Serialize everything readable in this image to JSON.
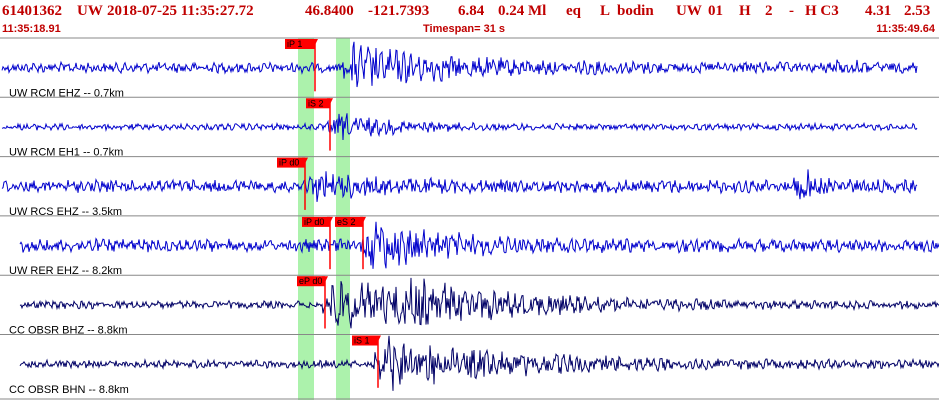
{
  "header": {
    "event_id": "61401362",
    "network": "UW",
    "datetime": "2018-07-25 11:35:27.72",
    "lat": "46.8400",
    "lon": "-121.7393",
    "depth": "6.84",
    "magnitude": "0.24 Ml",
    "event_type": "eq",
    "status": "L",
    "author": "bodin",
    "network2": "UW",
    "version": "01",
    "quality": "H",
    "num": "2",
    "dash": "-",
    "code": "H C3",
    "val1": "4.31",
    "val2": "2.53"
  },
  "subheader": {
    "start_time": "11:35:18.91",
    "timespan": "Timespan=  31 s",
    "end_time": "11:35:49.64"
  },
  "colors": {
    "header_text": "#c00000",
    "trace_blue": "#0000cc",
    "trace_navy": "#000066",
    "pick_red": "#ff0000",
    "window_green": "#90ee90",
    "separator": "#888888"
  },
  "traces": [
    {
      "label": "UW RCM EHZ -- 0.7km",
      "color": "trace_blue",
      "picks": [
        {
          "text": "iP 1"
        }
      ]
    },
    {
      "label": "UW RCM EH1 -- 0.7km",
      "color": "trace_blue",
      "picks": [
        {
          "text": "iS 2"
        }
      ]
    },
    {
      "label": "UW RCS EHZ -- 3.5km",
      "color": "trace_blue",
      "picks": [
        {
          "text": "iP d0"
        }
      ]
    },
    {
      "label": "UW RER EHZ -- 8.2km",
      "color": "trace_blue",
      "picks": [
        {
          "text": "iP d0"
        },
        {
          "text": "eS 2"
        }
      ]
    },
    {
      "label": "CC OBSR BHZ -- 8.8km",
      "color": "trace_navy",
      "picks": [
        {
          "text": "eP d0"
        }
      ]
    },
    {
      "label": "CC OBSR BHN -- 8.8km",
      "color": "trace_navy",
      "picks": [
        {
          "text": "iS 1"
        }
      ]
    }
  ]
}
